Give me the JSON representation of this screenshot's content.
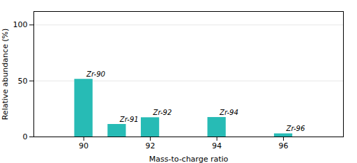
{
  "chart_data": {
    "type": "bar",
    "x": [
      90,
      91,
      92,
      94,
      96
    ],
    "values": [
      51.5,
      11.2,
      17.2,
      17.4,
      2.8
    ],
    "labels": [
      "Zr-90",
      "Zr-91",
      "Zr-92",
      "Zr-94",
      "Zr-96"
    ],
    "color": "#27bbb5",
    "xlabel": "Mass-to-charge ratio",
    "ylabel": "Relative abundance (%)",
    "xlim": [
      88.5,
      97.8
    ],
    "xticks": [
      90,
      92,
      94,
      96
    ],
    "ylim": [
      0,
      112
    ],
    "yticks": [
      0,
      50,
      100
    ],
    "grid": true
  }
}
